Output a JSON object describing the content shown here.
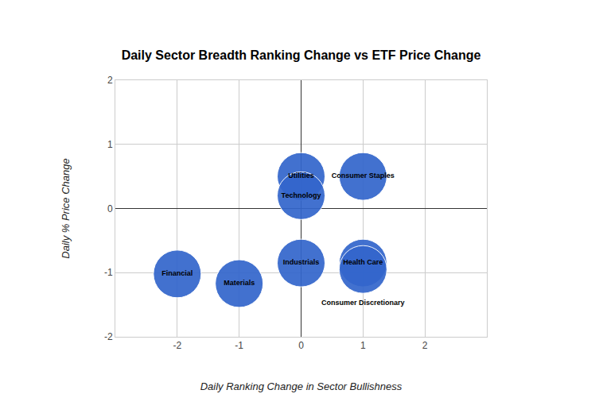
{
  "chart_data": {
    "type": "scatter",
    "title": "Daily Sector Breadth Ranking Change vs ETF Price Change",
    "x_label": "Daily Ranking Change in Sector Bullishness",
    "y_label": "Daily % Price Change",
    "labels": [
      "Utilities",
      "Technology",
      "Consumer Staples",
      "Industrials",
      "Health Care",
      "Consumer Discretionary",
      "Financial",
      "Materials"
    ],
    "x": [
      0,
      0,
      1,
      0,
      1,
      1,
      -2,
      -1
    ],
    "values": [
      0.5,
      0.2,
      0.5,
      -0.85,
      -0.85,
      -0.95,
      -1.02,
      -1.17
    ],
    "color": "#3366cc",
    "marker": "circle",
    "xlim": [
      -3,
      3
    ],
    "xticks": [
      -2,
      -1,
      0,
      1,
      2
    ],
    "ylim": [
      -2,
      2
    ],
    "yticks": [
      -2,
      -1,
      0,
      1,
      2
    ],
    "grid": true
  }
}
